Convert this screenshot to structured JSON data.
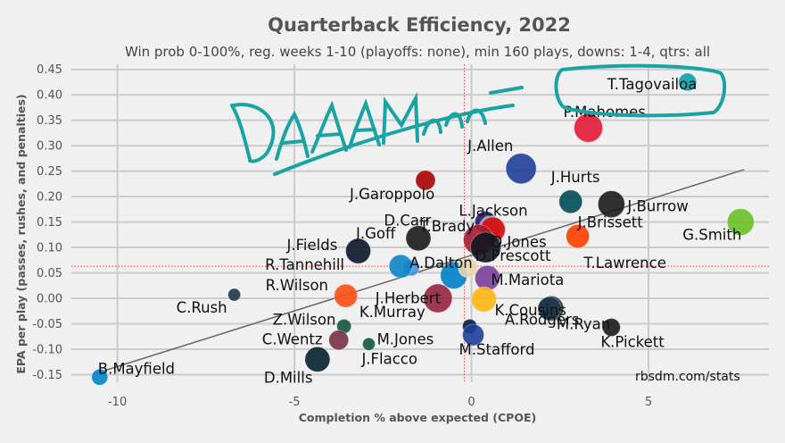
{
  "chart_data": {
    "type": "scatter",
    "title": "Quarterback Efficiency, 2022",
    "subtitle": "Win prob 0-100%, reg. weeks 1-10 (playoffs: none), min 160 plays, downs: 1-4, qtrs: all",
    "xlabel": "Completion % above expected (CPOE)",
    "ylabel": "EPA per play (passes, rushes, and penalties)",
    "xlim": [
      -11.3,
      8.4
    ],
    "ylim": [
      -0.165,
      0.46
    ],
    "xticks": [
      -10,
      -5,
      0,
      5
    ],
    "yticks": [
      -0.15,
      -0.1,
      -0.05,
      0.0,
      0.05,
      0.1,
      0.15,
      0.2,
      0.25,
      0.3,
      0.35,
      0.4,
      0.45
    ],
    "ytick_labels": [
      "-0.15",
      "-0.10",
      "-0.05",
      "0.00",
      "0.05",
      "0.10",
      "0.15",
      "0.20",
      "0.25",
      "0.30",
      "0.35",
      "0.40",
      "0.45"
    ],
    "grid": true,
    "mean_x": -0.2,
    "mean_y": 0.063,
    "trend_line": {
      "x": [
        -10.5,
        7.7
      ],
      "y": [
        -0.145,
        0.253
      ]
    },
    "credit": "rbsdm.com/stats",
    "annotation": "DAAAMnnn",
    "annotation_color": "#1aa3a3",
    "points": [
      {
        "name": "T.Tagovailoa",
        "x": 6.1,
        "y": 0.425,
        "size": 10,
        "color": "#0e9ea6"
      },
      {
        "name": "P.Mahomes",
        "x": 3.3,
        "y": 0.335,
        "size": 16,
        "color": "#e31837"
      },
      {
        "name": "J.Allen",
        "x": 1.4,
        "y": 0.255,
        "size": 17,
        "color": "#1f3f99"
      },
      {
        "name": "J.Hurts",
        "x": 2.8,
        "y": 0.19,
        "size": 13,
        "color": "#004c54"
      },
      {
        "name": "J.Burrow",
        "x": 3.95,
        "y": 0.185,
        "size": 15,
        "color": "#1b1b1b"
      },
      {
        "name": "G.Smith",
        "x": 7.6,
        "y": 0.15,
        "size": 15,
        "color": "#69be28"
      },
      {
        "name": "J.Garoppolo",
        "x": -1.3,
        "y": 0.232,
        "size": 11,
        "color": "#aa0000"
      },
      {
        "name": "L.Jackson",
        "x": 0.4,
        "y": 0.15,
        "size": 12,
        "color": "#241773"
      },
      {
        "name": "J.Brissett",
        "x": 3.0,
        "y": 0.122,
        "size": 13,
        "color": "#ff3c00"
      },
      {
        "name": "D.Carr",
        "x": 0.55,
        "y": 0.14,
        "size": 13,
        "color": "#a5acaf"
      },
      {
        "name": "T.Brady",
        "x": 0.6,
        "y": 0.135,
        "size": 14,
        "color": "#d50a0a"
      },
      {
        "name": "J.Goff",
        "x": -1.5,
        "y": 0.118,
        "size": 14,
        "color": "#1b1b1b"
      },
      {
        "name": "J.Fields",
        "x": -3.2,
        "y": 0.093,
        "size": 14,
        "color": "#0b162a"
      },
      {
        "name": "D.Jones",
        "x": 0.2,
        "y": 0.115,
        "size": 17,
        "color": "#a71930"
      },
      {
        "name": "T.Lawrence",
        "x": 0.4,
        "y": 0.1,
        "size": 17,
        "color": "#101820"
      },
      {
        "name": "A.Dalton",
        "x": -1.7,
        "y": 0.06,
        "size": 9,
        "color": "#4a90e2"
      },
      {
        "name": "R.Tannehill",
        "x": -2.0,
        "y": 0.063,
        "size": 13,
        "color": "#0c85c8"
      },
      {
        "name": "M.Mariota",
        "x": 0.45,
        "y": 0.04,
        "size": 14,
        "color": "#7a3f9a"
      },
      {
        "name": "J.Herbert",
        "x": -0.5,
        "y": 0.045,
        "size": 15,
        "color": "#0080c6"
      },
      {
        "name": "D.Prescott",
        "x": -0.1,
        "y": 0.06,
        "size": 11,
        "color": "#e8d6b0"
      },
      {
        "name": "K.Cousins",
        "x": 0.35,
        "y": -0.002,
        "size": 14,
        "color": "#ffb612"
      },
      {
        "name": "K.Murray",
        "x": -0.95,
        "y": 0.0,
        "size": 16,
        "color": "#97233f"
      },
      {
        "name": "R.Wilson",
        "x": -3.55,
        "y": 0.005,
        "size": 13,
        "color": "#fb4f14"
      },
      {
        "name": "A.Rodgers",
        "x": 2.25,
        "y": -0.02,
        "size": 14,
        "color": "#203731"
      },
      {
        "name": "C.Rush",
        "x": -6.7,
        "y": 0.007,
        "size": 7,
        "color": "#1f3650"
      },
      {
        "name": "M.Ryan",
        "x": 2.2,
        "y": -0.02,
        "size": 13,
        "color": "#1f3650"
      },
      {
        "name": "M.Jones",
        "x": -0.05,
        "y": -0.055,
        "size": 8,
        "color": "#002244"
      },
      {
        "name": "M.Stafford",
        "x": 0.05,
        "y": -0.072,
        "size": 12,
        "color": "#1f3f99"
      },
      {
        "name": "K.Pickett",
        "x": 3.95,
        "y": -0.057,
        "size": 10,
        "color": "#1b1b1b"
      },
      {
        "name": "Z.Wilson",
        "x": -3.6,
        "y": -0.055,
        "size": 8,
        "color": "#125740"
      },
      {
        "name": "C.Wentz",
        "x": -3.75,
        "y": -0.082,
        "size": 11,
        "color": "#773141"
      },
      {
        "name": "J.Flacco",
        "x": -2.9,
        "y": -0.09,
        "size": 7,
        "color": "#125740"
      },
      {
        "name": "D.Mills",
        "x": -4.35,
        "y": -0.12,
        "size": 14,
        "color": "#03202f"
      },
      {
        "name": "B.Mayfield",
        "x": -10.5,
        "y": -0.155,
        "size": 9,
        "color": "#0085ca"
      }
    ]
  }
}
